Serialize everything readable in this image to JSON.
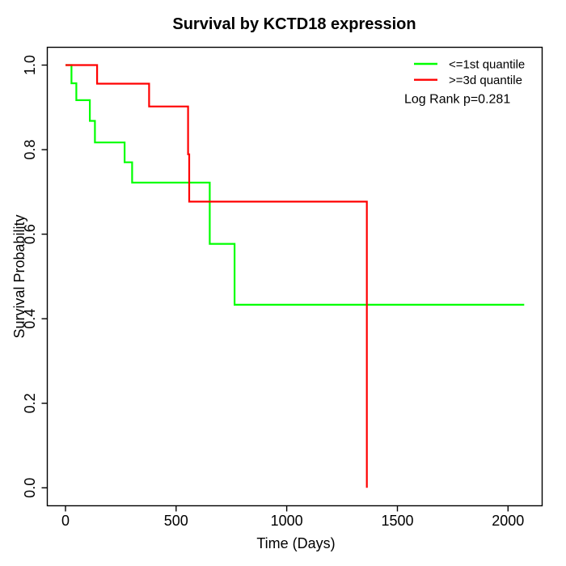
{
  "chart_data": {
    "type": "line",
    "subtype": "kaplan-meier-step",
    "title": "Survival by KCTD18 expression",
    "xlabel": "Time (Days)",
    "ylabel": "Survival Probability",
    "xlim": [
      0,
      2073
    ],
    "ylim": [
      0.0,
      1.0
    ],
    "x_ticks": [
      0,
      500,
      1000,
      1500,
      2000
    ],
    "x_tick_labels": [
      "0",
      "500",
      "1000",
      "1500",
      "2000"
    ],
    "y_ticks": [
      0.0,
      0.2,
      0.4,
      0.6,
      0.8,
      1.0
    ],
    "y_tick_labels": [
      "0.0",
      "0.2",
      "0.4",
      "0.6",
      "0.8",
      "1.0"
    ],
    "grid": false,
    "legend_position": "top-right",
    "annotation": "Log Rank p=0.281",
    "series": [
      {
        "name": "<=1st quantile",
        "color": "#00FF00",
        "steps": [
          [
            0,
            1.0
          ],
          [
            27,
            0.957
          ],
          [
            49,
            0.917
          ],
          [
            110,
            0.868
          ],
          [
            133,
            0.817
          ],
          [
            267,
            0.77
          ],
          [
            301,
            0.722
          ],
          [
            652,
            0.577
          ],
          [
            764,
            0.433
          ],
          [
            2073,
            0.433
          ]
        ]
      },
      {
        "name": ">=3d quantile",
        "color": "#FF0000",
        "steps": [
          [
            0,
            1.0
          ],
          [
            143,
            0.956
          ],
          [
            378,
            0.902
          ],
          [
            554,
            0.789
          ],
          [
            559,
            0.677
          ],
          [
            1362,
            0.0
          ]
        ]
      }
    ]
  }
}
